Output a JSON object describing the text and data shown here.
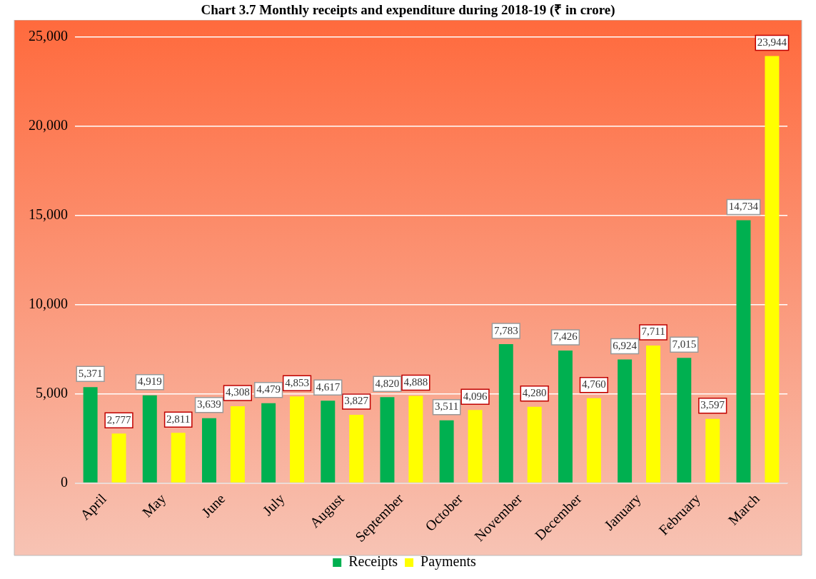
{
  "chart_data": {
    "type": "bar",
    "title": "Chart 3.7 Monthly receipts and expenditure during 2018-19 (₹ in crore)",
    "categories": [
      "April",
      "May",
      "June",
      "July",
      "August",
      "September",
      "October",
      "November",
      "December",
      "January",
      "February",
      "March"
    ],
    "series": [
      {
        "name": "Receipts",
        "color": "#00b050",
        "values": [
          5371,
          4919,
          3639,
          4479,
          4617,
          4820,
          3511,
          7783,
          7426,
          6924,
          7015,
          14734
        ],
        "value_labels": [
          "5,371",
          "4,919",
          "3,639",
          "4,479",
          "4,617",
          "4,820",
          "3,511",
          "7,783",
          "7,426",
          "6,924",
          "7,015",
          "14,734"
        ]
      },
      {
        "name": "Payments",
        "color": "#ffff00",
        "values": [
          2777,
          2811,
          4308,
          4853,
          3827,
          4888,
          4096,
          4280,
          4760,
          7711,
          3597,
          23944
        ],
        "value_labels": [
          "2,777",
          "2,811",
          "4,308",
          "4,853",
          "3,827",
          "4,888",
          "4,096",
          "4,280",
          "4,760",
          "7,711",
          "3,597",
          "23,944"
        ]
      }
    ],
    "ylim": [
      0,
      25000
    ],
    "yticks": [
      0,
      {
        "value": 5000,
        "label": "5,000"
      },
      {
        "value": 10000,
        "label": "10,000"
      },
      {
        "value": 15000,
        "label": "15,000"
      },
      {
        "value": 20000,
        "label": "20,000"
      },
      {
        "value": 25000,
        "label": "25,000"
      }
    ],
    "grid": "y",
    "legend": "bottom"
  }
}
